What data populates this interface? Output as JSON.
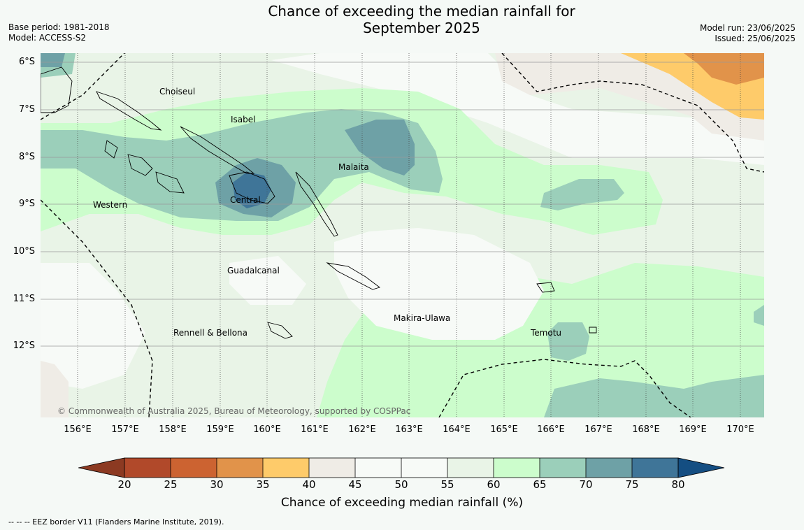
{
  "title_line1": "Chance of exceeding the median rainfall for",
  "title_line2": "September 2025",
  "base_period": "Base period: 1981-2018",
  "model": "Model: ACCESS-S2",
  "model_run": "Model run: 23/06/2025",
  "issued": "Issued: 25/06/2025",
  "latitude_labels": [
    "6°S",
    "7°S",
    "8°S",
    "9°S",
    "10°S",
    "11°S",
    "12°S"
  ],
  "longitude_labels": [
    "156°E",
    "157°E",
    "158°E",
    "159°E",
    "160°E",
    "161°E",
    "162°E",
    "163°E",
    "164°E",
    "165°E",
    "166°E",
    "167°E",
    "168°E",
    "169°E",
    "170°E"
  ],
  "places": {
    "choiseul": "Choiseul",
    "isabel": "Isabel",
    "malaita": "Malaita",
    "western": "Western",
    "central": "Central",
    "guadalcanal": "Guadalcanal",
    "makira": "Makira-Ulawa",
    "rennell": "Rennell & Bellona",
    "temotu": "Temotu"
  },
  "copyright": "© Commonwealth of Australia 2025, Bureau of Meteorology, supported by COSPPac",
  "colorbar": {
    "label": "Chance of exceeding median rainfall (%)",
    "ticks": [
      "20",
      "25",
      "30",
      "35",
      "40",
      "45",
      "50",
      "55",
      "60",
      "65",
      "70",
      "75",
      "80"
    ],
    "colors": {
      "below_20": "#8c3a22",
      "c20_25": "#b1492a",
      "c25_30": "#cc6331",
      "c30_35": "#e1934a",
      "c35_40": "#fecb6a",
      "c40_45": "#efece6",
      "c45_50": "#f7faf7",
      "c50_55": "#f7faf7",
      "c55_60": "#e9f4e7",
      "c60_65": "#ccfdcc",
      "c65_70": "#9bcfba",
      "c70_75": "#6ea1a6",
      "c75_80": "#3f7598",
      "above_80": "#144e82"
    }
  },
  "eez_note": "--  --  -- EEZ border V11 (Flanders Marine Institute, 2019)."
}
